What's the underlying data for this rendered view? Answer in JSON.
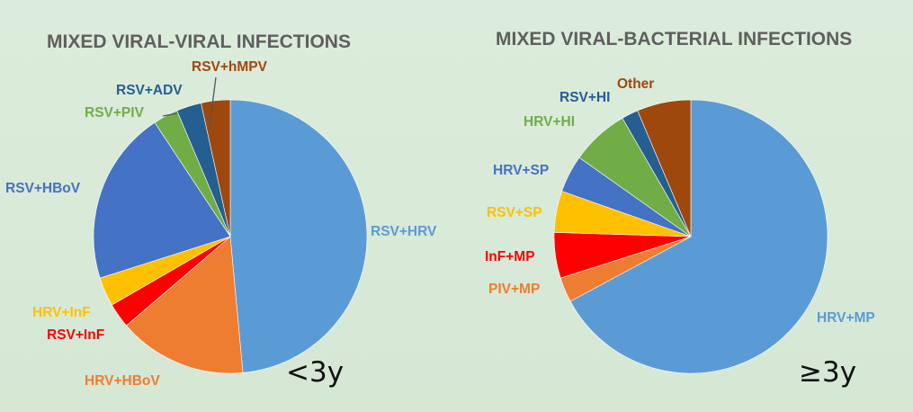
{
  "chart_data": [
    {
      "type": "pie",
      "title": "MIXED VIRAL-VIRAL INFECTIONS",
      "age_group": "<3y",
      "start_angle_deg": 0,
      "direction": "clockwise",
      "slices": [
        {
          "label": "RSV+HRV",
          "value": 49.5,
          "color": "#5b9bd5"
        },
        {
          "label": "HRV+HBoV",
          "value": 15.5,
          "color": "#ed7d31"
        },
        {
          "label": "RSV+InF",
          "value": 3.0,
          "color": "#ff0000"
        },
        {
          "label": "HRV+InF",
          "value": 3.5,
          "color": "#ffc000"
        },
        {
          "label": "RSV+HBoV",
          "value": 21.0,
          "color": "#4472c4"
        },
        {
          "label": "RSV+PIV",
          "value": 3.0,
          "color": "#70ad47"
        },
        {
          "label": "RSV+ADV",
          "value": 3.0,
          "color": "#255e91"
        },
        {
          "label": "RSV+hMPV",
          "value": 3.5,
          "color": "#9e480e"
        }
      ]
    },
    {
      "type": "pie",
      "title": "MIXED VIRAL-BACTERIAL INFECTIONS",
      "age_group": "≥3y",
      "start_angle_deg": 0,
      "direction": "clockwise",
      "slices": [
        {
          "label": "HRV+MP",
          "value": 68.5,
          "color": "#5b9bd5"
        },
        {
          "label": "PIV+MP",
          "value": 3.0,
          "color": "#ed7d31"
        },
        {
          "label": "InF+MP",
          "value": 5.5,
          "color": "#ff0000"
        },
        {
          "label": "RSV+SP",
          "value": 5.0,
          "color": "#ffc000"
        },
        {
          "label": "HRV+SP",
          "value": 4.5,
          "color": "#4472c4"
        },
        {
          "label": "HRV+HI",
          "value": 7.0,
          "color": "#70ad47"
        },
        {
          "label": "RSV+HI",
          "value": 2.0,
          "color": "#255e91"
        },
        {
          "label": "Other",
          "value": 6.5,
          "color": "#9e480e"
        }
      ]
    }
  ]
}
